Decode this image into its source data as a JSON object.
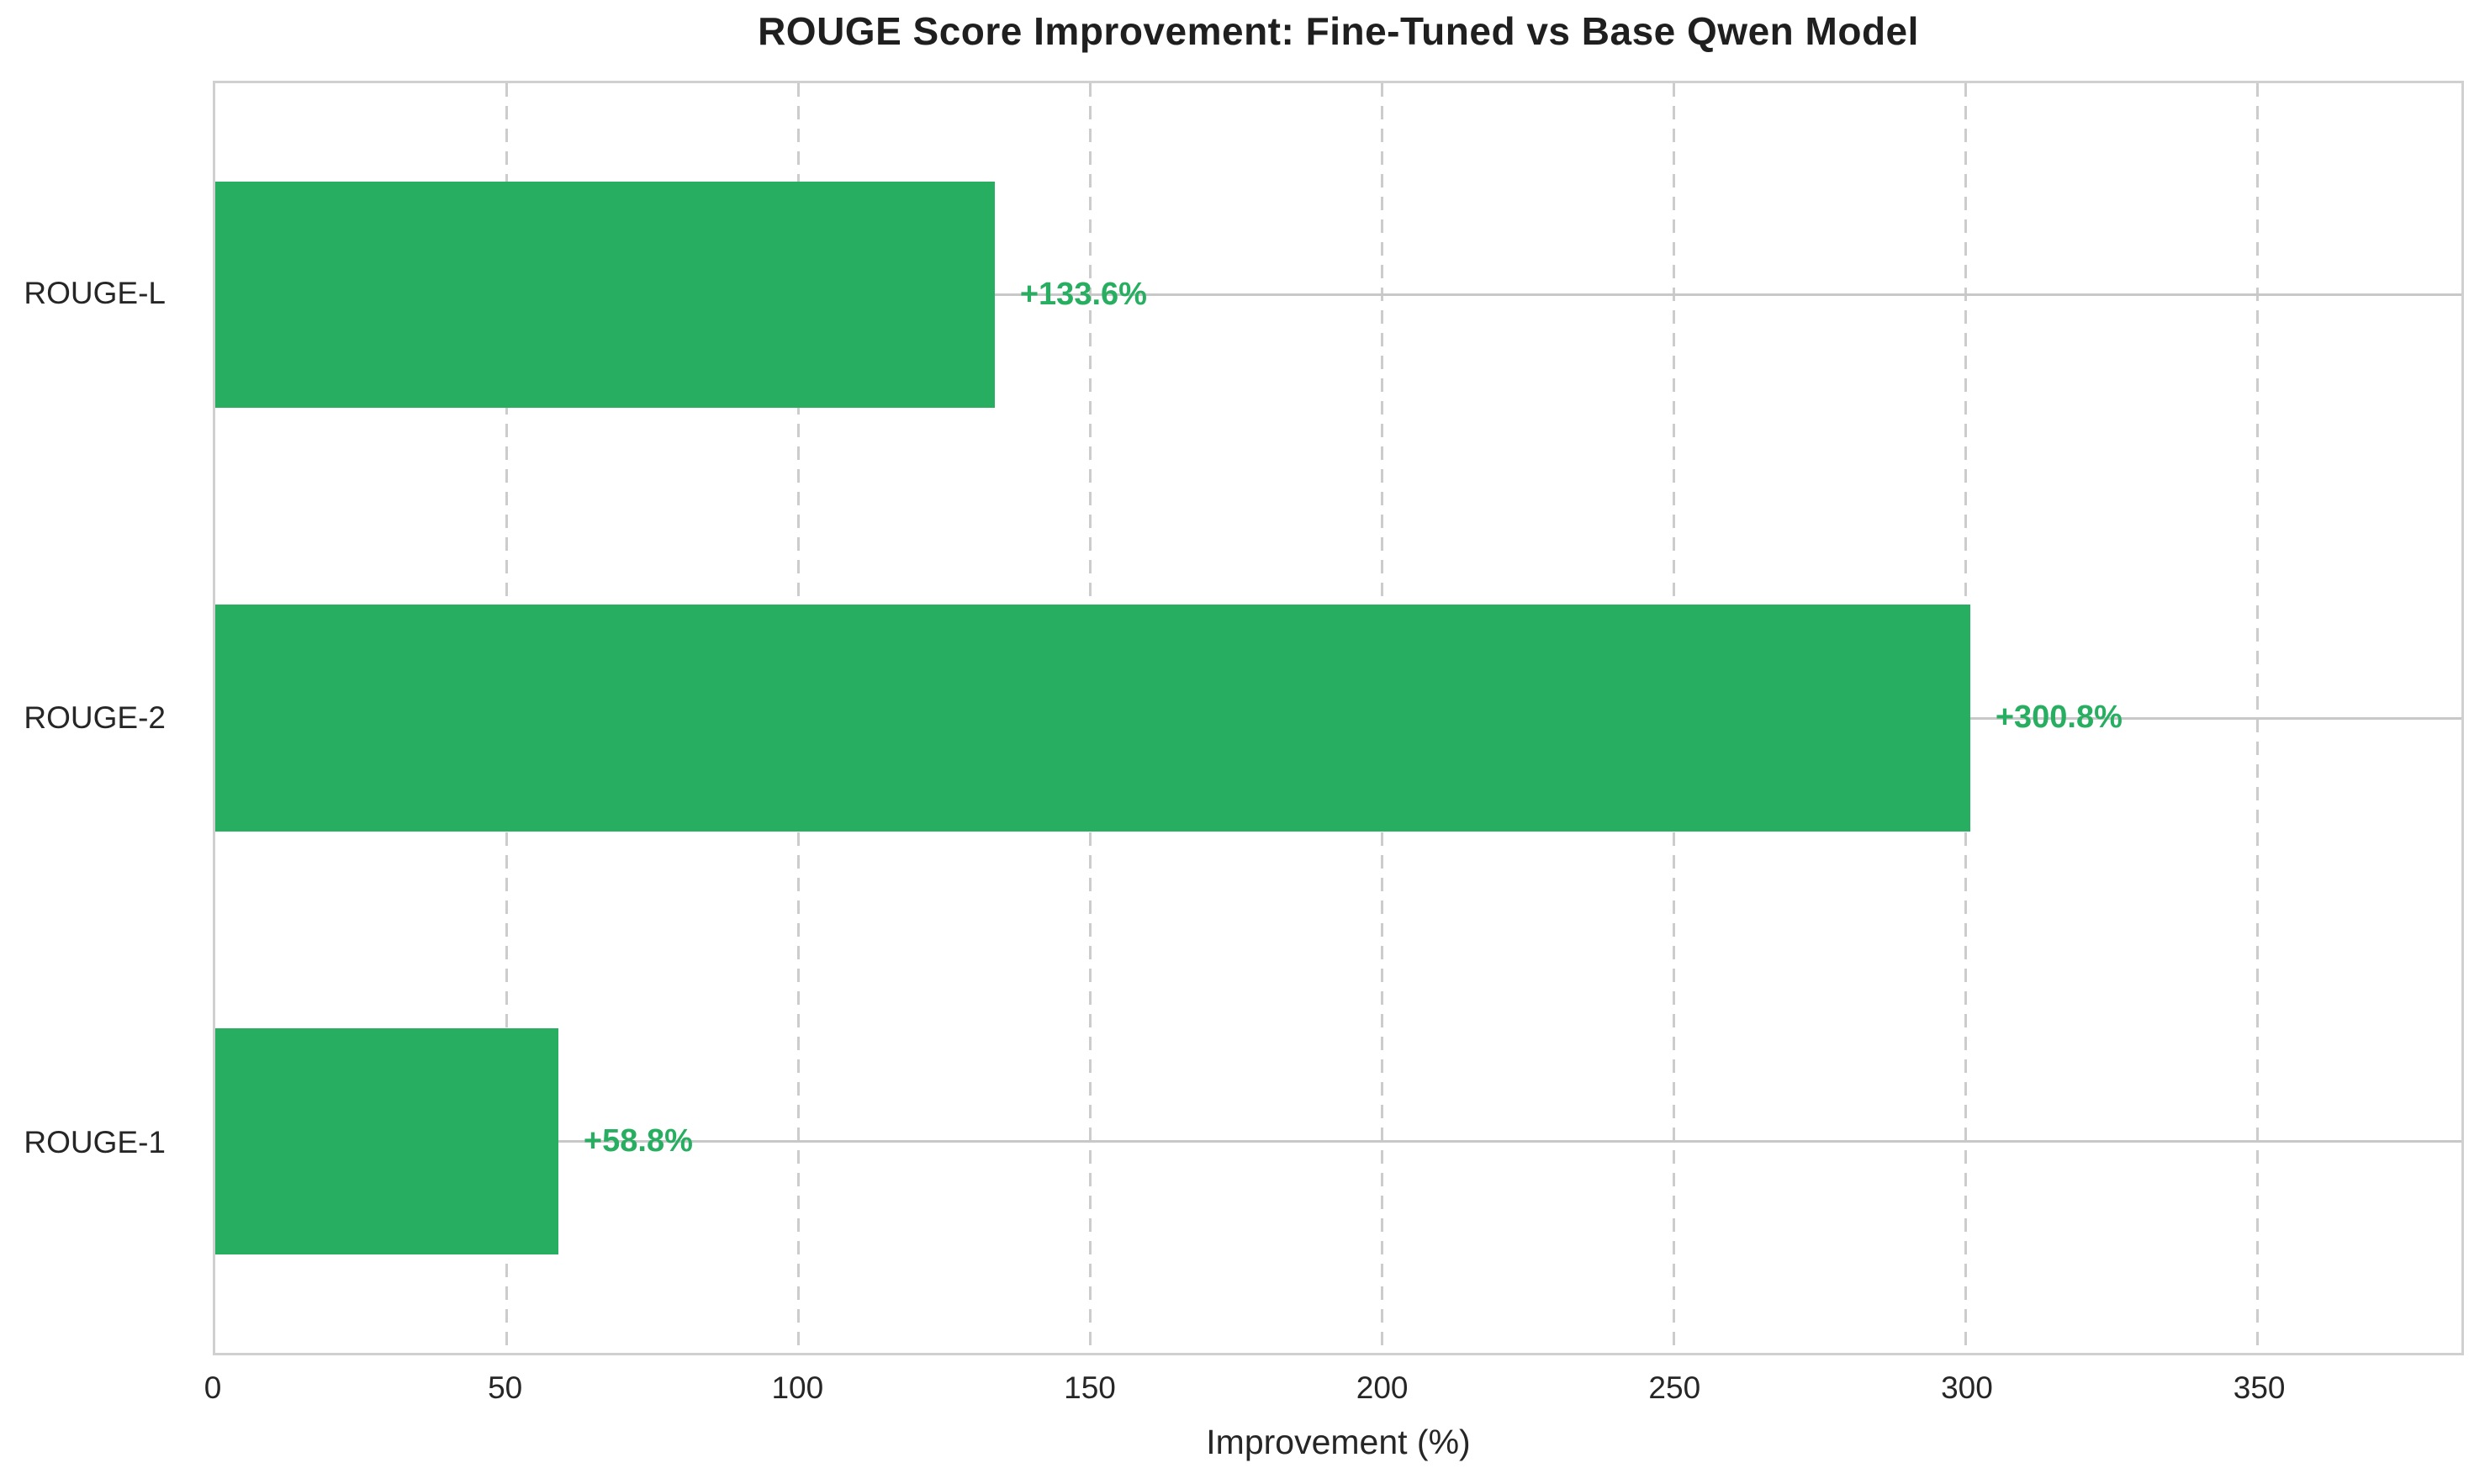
{
  "chart_data": {
    "type": "bar",
    "orientation": "horizontal",
    "title": "ROUGE Score Improvement: Fine-Tuned vs Base Qwen Model",
    "xlabel": "Improvement (%)",
    "categories": [
      "ROUGE-L",
      "ROUGE-2",
      "ROUGE-1"
    ],
    "values": [
      133.6,
      300.8,
      58.8
    ],
    "bar_labels": [
      "+133.6%",
      "+300.8%",
      "+58.8%"
    ],
    "xticks": [
      "0",
      "50",
      "100",
      "150",
      "200",
      "250",
      "300",
      "350"
    ],
    "xtick_values": [
      0,
      50,
      100,
      150,
      200,
      250,
      300,
      350
    ],
    "xlim": [
      0,
      385
    ],
    "bar_color": "#27ae60",
    "value_label_color": "#27ae60",
    "grid": {
      "x_gridlines": "dashed",
      "y_gridlines": "solid",
      "color": "#cccccc"
    },
    "legend": "none",
    "background": "#ffffff"
  }
}
